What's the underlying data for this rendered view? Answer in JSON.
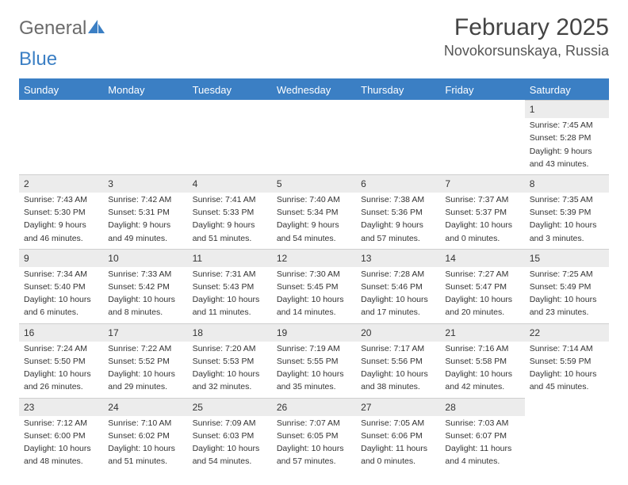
{
  "logo": {
    "text1": "General",
    "text2": "Blue"
  },
  "title": "February 2025",
  "location": "Novokorsunskaya, Russia",
  "colors": {
    "header_bar": "#3b7fc4",
    "daynum_bg": "#ececec",
    "daynum_border": "#cfcfcf",
    "text": "#333333",
    "background": "#ffffff"
  },
  "typography": {
    "title_fontsize": 30,
    "location_fontsize": 18,
    "weekday_fontsize": 13,
    "body_fontsize": 10.5
  },
  "weekdays": [
    "Sunday",
    "Monday",
    "Tuesday",
    "Wednesday",
    "Thursday",
    "Friday",
    "Saturday"
  ],
  "weeks": [
    [
      {
        "empty": true
      },
      {
        "empty": true
      },
      {
        "empty": true
      },
      {
        "empty": true
      },
      {
        "empty": true
      },
      {
        "empty": true
      },
      {
        "n": "1",
        "sunrise": "Sunrise: 7:45 AM",
        "sunset": "Sunset: 5:28 PM",
        "day1": "Daylight: 9 hours",
        "day2": "and 43 minutes."
      }
    ],
    [
      {
        "n": "2",
        "sunrise": "Sunrise: 7:43 AM",
        "sunset": "Sunset: 5:30 PM",
        "day1": "Daylight: 9 hours",
        "day2": "and 46 minutes."
      },
      {
        "n": "3",
        "sunrise": "Sunrise: 7:42 AM",
        "sunset": "Sunset: 5:31 PM",
        "day1": "Daylight: 9 hours",
        "day2": "and 49 minutes."
      },
      {
        "n": "4",
        "sunrise": "Sunrise: 7:41 AM",
        "sunset": "Sunset: 5:33 PM",
        "day1": "Daylight: 9 hours",
        "day2": "and 51 minutes."
      },
      {
        "n": "5",
        "sunrise": "Sunrise: 7:40 AM",
        "sunset": "Sunset: 5:34 PM",
        "day1": "Daylight: 9 hours",
        "day2": "and 54 minutes."
      },
      {
        "n": "6",
        "sunrise": "Sunrise: 7:38 AM",
        "sunset": "Sunset: 5:36 PM",
        "day1": "Daylight: 9 hours",
        "day2": "and 57 minutes."
      },
      {
        "n": "7",
        "sunrise": "Sunrise: 7:37 AM",
        "sunset": "Sunset: 5:37 PM",
        "day1": "Daylight: 10 hours",
        "day2": "and 0 minutes."
      },
      {
        "n": "8",
        "sunrise": "Sunrise: 7:35 AM",
        "sunset": "Sunset: 5:39 PM",
        "day1": "Daylight: 10 hours",
        "day2": "and 3 minutes."
      }
    ],
    [
      {
        "n": "9",
        "sunrise": "Sunrise: 7:34 AM",
        "sunset": "Sunset: 5:40 PM",
        "day1": "Daylight: 10 hours",
        "day2": "and 6 minutes."
      },
      {
        "n": "10",
        "sunrise": "Sunrise: 7:33 AM",
        "sunset": "Sunset: 5:42 PM",
        "day1": "Daylight: 10 hours",
        "day2": "and 8 minutes."
      },
      {
        "n": "11",
        "sunrise": "Sunrise: 7:31 AM",
        "sunset": "Sunset: 5:43 PM",
        "day1": "Daylight: 10 hours",
        "day2": "and 11 minutes."
      },
      {
        "n": "12",
        "sunrise": "Sunrise: 7:30 AM",
        "sunset": "Sunset: 5:45 PM",
        "day1": "Daylight: 10 hours",
        "day2": "and 14 minutes."
      },
      {
        "n": "13",
        "sunrise": "Sunrise: 7:28 AM",
        "sunset": "Sunset: 5:46 PM",
        "day1": "Daylight: 10 hours",
        "day2": "and 17 minutes."
      },
      {
        "n": "14",
        "sunrise": "Sunrise: 7:27 AM",
        "sunset": "Sunset: 5:47 PM",
        "day1": "Daylight: 10 hours",
        "day2": "and 20 minutes."
      },
      {
        "n": "15",
        "sunrise": "Sunrise: 7:25 AM",
        "sunset": "Sunset: 5:49 PM",
        "day1": "Daylight: 10 hours",
        "day2": "and 23 minutes."
      }
    ],
    [
      {
        "n": "16",
        "sunrise": "Sunrise: 7:24 AM",
        "sunset": "Sunset: 5:50 PM",
        "day1": "Daylight: 10 hours",
        "day2": "and 26 minutes."
      },
      {
        "n": "17",
        "sunrise": "Sunrise: 7:22 AM",
        "sunset": "Sunset: 5:52 PM",
        "day1": "Daylight: 10 hours",
        "day2": "and 29 minutes."
      },
      {
        "n": "18",
        "sunrise": "Sunrise: 7:20 AM",
        "sunset": "Sunset: 5:53 PM",
        "day1": "Daylight: 10 hours",
        "day2": "and 32 minutes."
      },
      {
        "n": "19",
        "sunrise": "Sunrise: 7:19 AM",
        "sunset": "Sunset: 5:55 PM",
        "day1": "Daylight: 10 hours",
        "day2": "and 35 minutes."
      },
      {
        "n": "20",
        "sunrise": "Sunrise: 7:17 AM",
        "sunset": "Sunset: 5:56 PM",
        "day1": "Daylight: 10 hours",
        "day2": "and 38 minutes."
      },
      {
        "n": "21",
        "sunrise": "Sunrise: 7:16 AM",
        "sunset": "Sunset: 5:58 PM",
        "day1": "Daylight: 10 hours",
        "day2": "and 42 minutes."
      },
      {
        "n": "22",
        "sunrise": "Sunrise: 7:14 AM",
        "sunset": "Sunset: 5:59 PM",
        "day1": "Daylight: 10 hours",
        "day2": "and 45 minutes."
      }
    ],
    [
      {
        "n": "23",
        "sunrise": "Sunrise: 7:12 AM",
        "sunset": "Sunset: 6:00 PM",
        "day1": "Daylight: 10 hours",
        "day2": "and 48 minutes."
      },
      {
        "n": "24",
        "sunrise": "Sunrise: 7:10 AM",
        "sunset": "Sunset: 6:02 PM",
        "day1": "Daylight: 10 hours",
        "day2": "and 51 minutes."
      },
      {
        "n": "25",
        "sunrise": "Sunrise: 7:09 AM",
        "sunset": "Sunset: 6:03 PM",
        "day1": "Daylight: 10 hours",
        "day2": "and 54 minutes."
      },
      {
        "n": "26",
        "sunrise": "Sunrise: 7:07 AM",
        "sunset": "Sunset: 6:05 PM",
        "day1": "Daylight: 10 hours",
        "day2": "and 57 minutes."
      },
      {
        "n": "27",
        "sunrise": "Sunrise: 7:05 AM",
        "sunset": "Sunset: 6:06 PM",
        "day1": "Daylight: 11 hours",
        "day2": "and 0 minutes."
      },
      {
        "n": "28",
        "sunrise": "Sunrise: 7:03 AM",
        "sunset": "Sunset: 6:07 PM",
        "day1": "Daylight: 11 hours",
        "day2": "and 4 minutes."
      },
      {
        "empty": true
      }
    ]
  ]
}
